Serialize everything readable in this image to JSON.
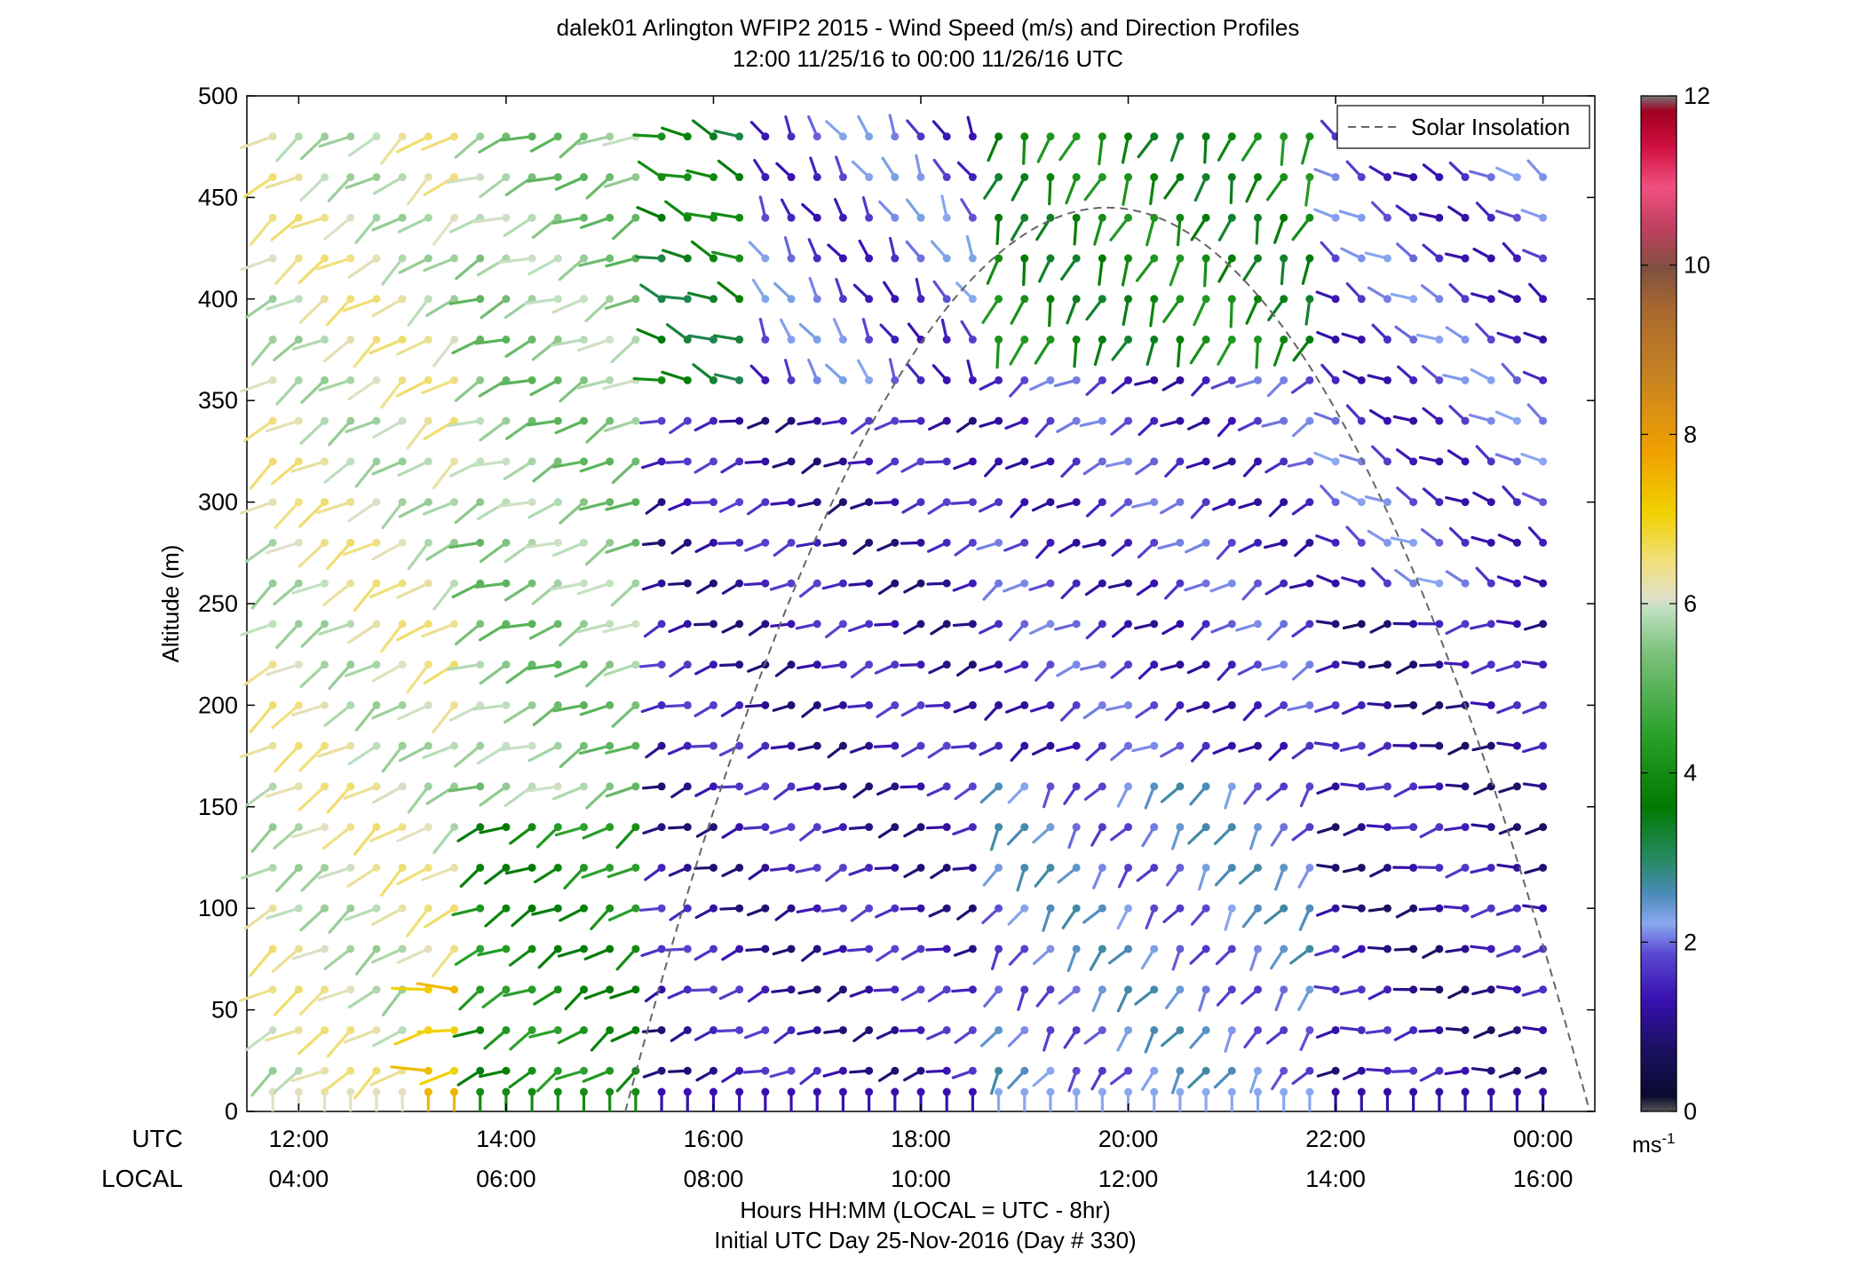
{
  "chart_data": {
    "type": "wind-barb-profile",
    "title": "dalek01 Arlington WFIP2 2015 - Wind Speed (m/s) and Direction Profiles",
    "subtitle": "12:00 11/25/16 to 00:00 11/26/16  UTC",
    "ylabel": "Altitude (m)",
    "xlabel": "Hours HH:MM  (LOCAL = UTC - 8hr)",
    "xlabel2": "Initial UTC Day 25-Nov-2016 (Day # 330)",
    "row_label_utc": "UTC",
    "row_label_local": "LOCAL",
    "x_range_hours": [
      11.5,
      24.5
    ],
    "ylim": [
      0,
      500
    ],
    "y_ticks": [
      "0",
      "50",
      "100",
      "150",
      "200",
      "250",
      "300",
      "350",
      "400",
      "450",
      "500"
    ],
    "x_ticks_utc": [
      "12:00",
      "14:00",
      "16:00",
      "18:00",
      "20:00",
      "22:00",
      "00:00"
    ],
    "x_ticks_local": [
      "04:00",
      "06:00",
      "08:00",
      "10:00",
      "12:00",
      "14:00",
      "16:00"
    ],
    "x_tick_hours": [
      12,
      14,
      16,
      18,
      20,
      22,
      24
    ],
    "legend_label": "Solar Insolation",
    "legend_position": "top-right",
    "solar_insolation": {
      "start_hour": 15.15,
      "end_hour": 24.45,
      "peak_hour": 19.7,
      "peak_altitude_equiv": 445
    },
    "colorbar": {
      "ticks": [
        "0",
        "2",
        "4",
        "6",
        "8",
        "10",
        "12"
      ],
      "unit": "ms",
      "unit_exponent": "-1",
      "range": [
        0,
        12
      ]
    },
    "altitudes_m": [
      20,
      40,
      60,
      80,
      100,
      120,
      140,
      160,
      180,
      200,
      220,
      240,
      260,
      280,
      300,
      320,
      340,
      360,
      380,
      400,
      420,
      440,
      460,
      480
    ],
    "profile_interval_min": 15,
    "regimes": [
      {
        "hours": [
          11.5,
          13.6
        ],
        "alt": [
          0,
          500
        ],
        "speed_ms": 6.1,
        "dir_deg": 235
      },
      {
        "hours": [
          13.1,
          13.6
        ],
        "alt": [
          0,
          80
        ],
        "speed_ms": 7.5,
        "dir_deg": 265
      },
      {
        "hours": [
          13.6,
          15.4
        ],
        "alt": [
          150,
          500
        ],
        "speed_ms": 5.5,
        "dir_deg": 245
      },
      {
        "hours": [
          13.6,
          15.4
        ],
        "alt": [
          0,
          150
        ],
        "speed_ms": 4.0,
        "dir_deg": 240
      },
      {
        "hours": [
          15.4,
          16.3
        ],
        "alt": [
          350,
          500
        ],
        "speed_ms": 3.6,
        "dir_deg": 290
      },
      {
        "hours": [
          15.4,
          18.6
        ],
        "alt": [
          0,
          350
        ],
        "speed_ms": 1.3,
        "dir_deg": 250
      },
      {
        "hours": [
          16.3,
          18.6
        ],
        "alt": [
          350,
          500
        ],
        "speed_ms": 1.8,
        "dir_deg": 330
      },
      {
        "hours": [
          18.6,
          21.8
        ],
        "alt": [
          380,
          500
        ],
        "speed_ms": 3.8,
        "dir_deg": 200
      },
      {
        "hours": [
          18.6,
          21.8
        ],
        "alt": [
          180,
          380
        ],
        "speed_ms": 1.6,
        "dir_deg": 240
      },
      {
        "hours": [
          18.6,
          21.8
        ],
        "alt": [
          0,
          180
        ],
        "speed_ms": 2.2,
        "dir_deg": 215
      },
      {
        "hours": [
          21.8,
          24.5
        ],
        "alt": [
          250,
          500
        ],
        "speed_ms": 1.7,
        "dir_deg": 300
      },
      {
        "hours": [
          21.8,
          24.5
        ],
        "alt": [
          0,
          250
        ],
        "speed_ms": 1.2,
        "dir_deg": 260
      }
    ]
  }
}
